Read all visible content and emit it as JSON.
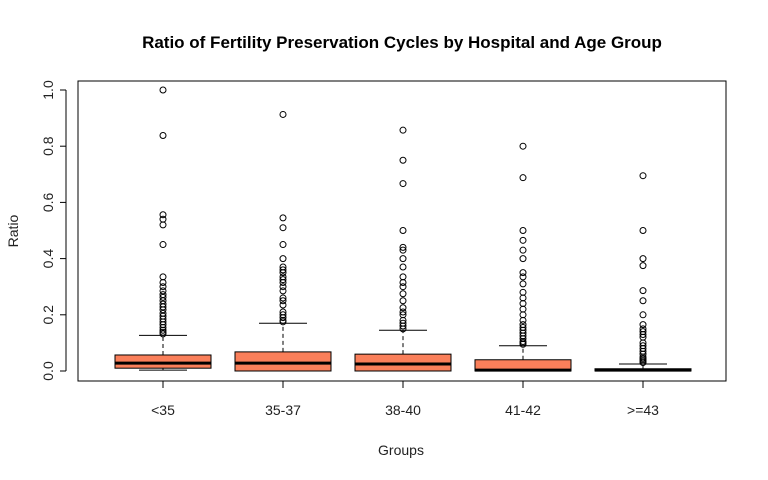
{
  "chart_data": {
    "type": "boxplot",
    "title": "Ratio of Fertility Preservation Cycles by Hospital and Age Group",
    "xlabel": "Groups",
    "ylabel": "Ratio",
    "ylim": [
      0,
      1.0
    ],
    "yticks": [
      "0.0",
      "0.2",
      "0.4",
      "0.6",
      "0.8",
      "1.0"
    ],
    "yticks_values": [
      0.0,
      0.2,
      0.4,
      0.6,
      0.8,
      1.0
    ],
    "categories": [
      "<35",
      "35-37",
      "38-40",
      "41-42",
      ">=43"
    ],
    "box_color": "#FA7F5A",
    "boxes": [
      {
        "group": "<35",
        "min": 0.003,
        "q1": 0.01,
        "median": 0.028,
        "q3": 0.057,
        "max": 0.127,
        "outliers": [
          1.0,
          0.838,
          0.556,
          0.54,
          0.52,
          0.45,
          0.335,
          0.315,
          0.3,
          0.285,
          0.272,
          0.262,
          0.25,
          0.238,
          0.228,
          0.218,
          0.205,
          0.195,
          0.185,
          0.175,
          0.165,
          0.155,
          0.145,
          0.138,
          0.132
        ]
      },
      {
        "group": "35-37",
        "min": 0.0,
        "q1": 0.0,
        "median": 0.028,
        "q3": 0.068,
        "max": 0.17,
        "outliers": [
          0.913,
          0.545,
          0.51,
          0.45,
          0.4,
          0.37,
          0.36,
          0.35,
          0.335,
          0.325,
          0.315,
          0.3,
          0.285,
          0.26,
          0.25,
          0.235,
          0.21,
          0.2,
          0.19,
          0.18,
          0.175
        ]
      },
      {
        "group": "38-40",
        "min": 0.0,
        "q1": 0.0,
        "median": 0.025,
        "q3": 0.06,
        "max": 0.145,
        "outliers": [
          0.857,
          0.75,
          0.667,
          0.5,
          0.44,
          0.43,
          0.4,
          0.37,
          0.335,
          0.315,
          0.3,
          0.275,
          0.25,
          0.225,
          0.21,
          0.2,
          0.18,
          0.17,
          0.16,
          0.15
        ]
      },
      {
        "group": "41-42",
        "min": 0.0,
        "q1": 0.0,
        "median": 0.003,
        "q3": 0.04,
        "max": 0.09,
        "outliers": [
          0.8,
          0.688,
          0.5,
          0.465,
          0.43,
          0.4,
          0.35,
          0.335,
          0.31,
          0.28,
          0.26,
          0.24,
          0.22,
          0.2,
          0.18,
          0.165,
          0.155,
          0.145,
          0.135,
          0.125,
          0.115,
          0.105,
          0.1,
          0.095
        ]
      },
      {
        "group": ">=43",
        "min": 0.0,
        "q1": 0.0,
        "median": 0.003,
        "q3": 0.008,
        "max": 0.025,
        "outliers": [
          0.695,
          0.5,
          0.4,
          0.375,
          0.286,
          0.25,
          0.2,
          0.165,
          0.15,
          0.14,
          0.13,
          0.12,
          0.1,
          0.09,
          0.08,
          0.07,
          0.06,
          0.05,
          0.045,
          0.04,
          0.035,
          0.03
        ]
      }
    ]
  }
}
